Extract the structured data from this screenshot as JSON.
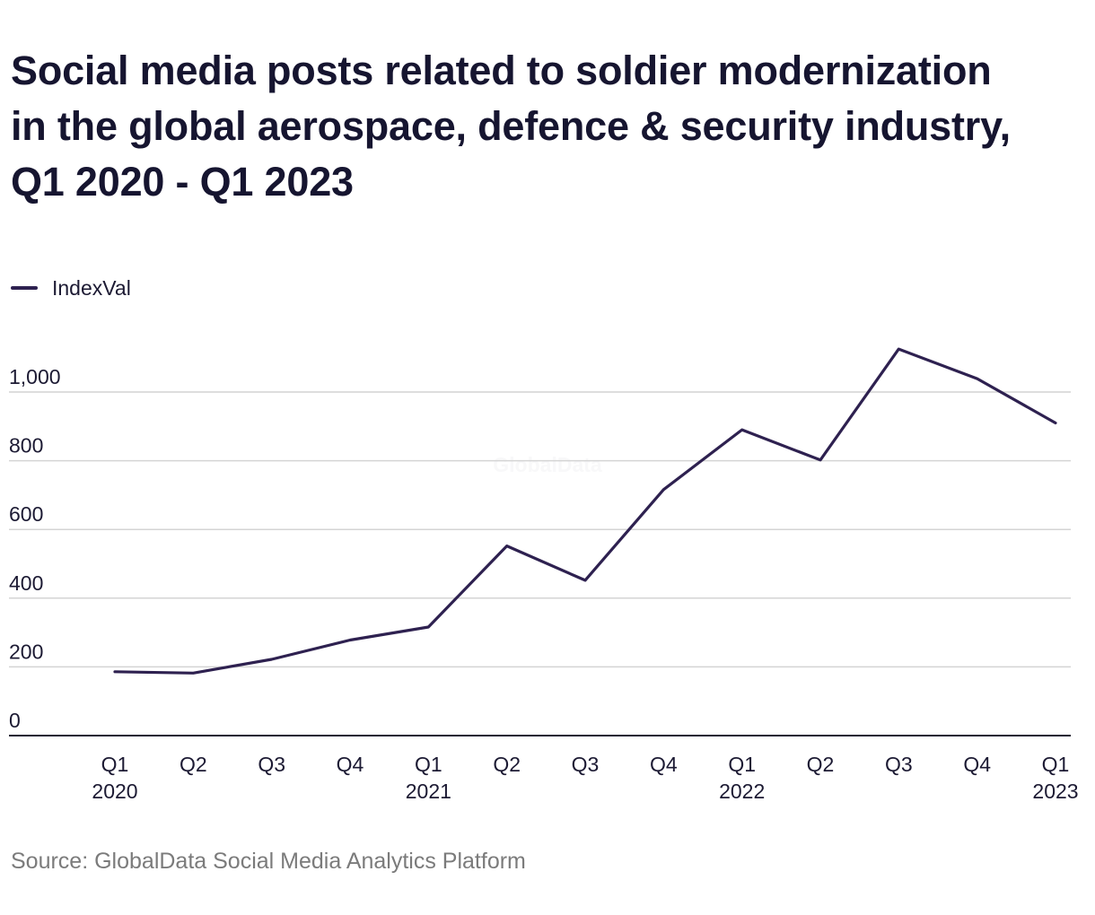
{
  "chart_data": {
    "type": "line",
    "title_lines": [
      "Social media posts related to soldier modernization",
      "in the global aerospace, defence & security industry,",
      "Q1 2020 - Q1 2023"
    ],
    "xlabel": "",
    "ylabel": "",
    "categories": [
      [
        "Q1",
        "2020"
      ],
      [
        "Q2",
        ""
      ],
      [
        "Q3",
        ""
      ],
      [
        "Q4",
        ""
      ],
      [
        "Q1",
        "2021"
      ],
      [
        "Q2",
        ""
      ],
      [
        "Q3",
        ""
      ],
      [
        "Q4",
        ""
      ],
      [
        "Q1",
        "2022"
      ],
      [
        "Q2",
        ""
      ],
      [
        "Q3",
        ""
      ],
      [
        "Q4",
        ""
      ],
      [
        "Q1",
        "2023"
      ]
    ],
    "series": [
      {
        "name": "IndexVal",
        "color": "#2e2150",
        "values": [
          186,
          182,
          222,
          278,
          316,
          552,
          452,
          716,
          890,
          802,
          1125,
          1039,
          910
        ]
      }
    ],
    "ylim": [
      0,
      1000
    ],
    "yticks": [
      0,
      200,
      400,
      600,
      800,
      1000
    ],
    "ytick_labels": [
      "0",
      "200",
      "400",
      "600",
      "800",
      "1,000"
    ],
    "grid": true,
    "legend_position": "top-left",
    "watermark": "GlobalData"
  },
  "source": "Source: GlobalData Social Media Analytics Platform"
}
